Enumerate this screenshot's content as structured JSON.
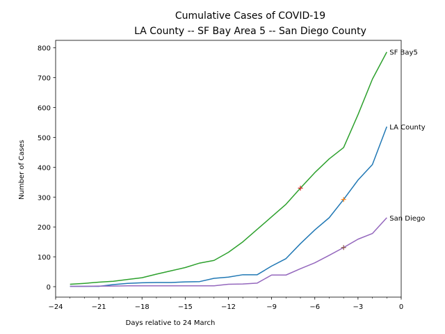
{
  "chart_data": {
    "type": "line",
    "title": "Cumulative Cases of COVID-19",
    "subtitle": "LA County -- SF Bay Area 5 -- San Diego County",
    "xlabel": "Days relative to 24 March",
    "ylabel": "Number of Cases",
    "xlim": [
      -24,
      0
    ],
    "ylim": [
      -35,
      825
    ],
    "xticks": [
      -24,
      -21,
      -18,
      -15,
      -12,
      -9,
      -6,
      -3,
      0
    ],
    "xtick_labels": [
      "−24",
      "−21",
      "−18",
      "−15",
      "−12",
      "−9",
      "−6",
      "−3",
      "0"
    ],
    "xminor_step": 1,
    "yticks": [
      0,
      100,
      200,
      300,
      400,
      500,
      600,
      700,
      800
    ],
    "ytick_labels": [
      "0",
      "100",
      "200",
      "300",
      "400",
      "500",
      "600",
      "700",
      "800"
    ],
    "grid": false,
    "legend": "none",
    "x": [
      -23,
      -22,
      -21,
      -20,
      -19,
      -18,
      -17,
      -16,
      -15,
      -14,
      -13,
      -12,
      -11,
      -10,
      -9,
      -8,
      -7,
      -6,
      -5,
      -4,
      -3,
      -2,
      -1
    ],
    "series": [
      {
        "name": "LA County",
        "color": "#1f77b4",
        "values": [
          1,
          1,
          1,
          7,
          11,
          13,
          14,
          14,
          16,
          17,
          28,
          32,
          40,
          40,
          69,
          94,
          144,
          190,
          231,
          292,
          357,
          409,
          536
        ],
        "marker": {
          "x": -4,
          "y": 292,
          "color": "#ff7f0e"
        }
      },
      {
        "name": "SF Bay5",
        "color": "#2ca02c",
        "values": [
          8,
          11,
          15,
          18,
          24,
          30,
          42,
          53,
          64,
          79,
          88,
          115,
          150,
          192,
          234,
          276,
          330,
          382,
          428,
          466,
          576,
          695,
          786
        ],
        "marker": {
          "x": -7,
          "y": 330,
          "color": "#d62728"
        }
      },
      {
        "name": "San Diego",
        "color": "#9467bd",
        "values": [
          1,
          1,
          2,
          2,
          3,
          3,
          3,
          3,
          3,
          3,
          3,
          8,
          9,
          12,
          39,
          39,
          60,
          80,
          105,
          131,
          159,
          178,
          231
        ],
        "marker": {
          "x": -4,
          "y": 131,
          "color": "#8c564b"
        }
      }
    ]
  }
}
